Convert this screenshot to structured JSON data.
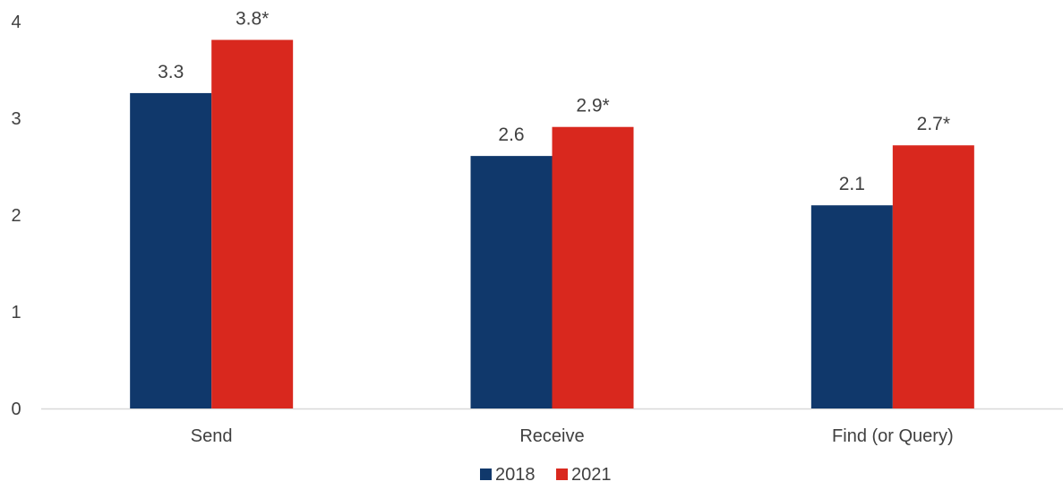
{
  "chart_data": {
    "type": "bar",
    "title": "",
    "xlabel": "",
    "ylabel": "",
    "categories": [
      "Send",
      "Receive",
      "Find (or Query)"
    ],
    "series": [
      {
        "name": "2018",
        "color": "#10386B",
        "values": [
          3.26,
          2.61,
          2.1
        ],
        "labels": [
          "3.3",
          "2.6",
          "2.1"
        ]
      },
      {
        "name": "2021",
        "color": "#D9281E",
        "values": [
          3.81,
          2.91,
          2.72
        ],
        "labels": [
          "3.8*",
          "2.9*",
          "2.7*"
        ]
      }
    ],
    "ylim": [
      0,
      4
    ],
    "yticks": [
      "0",
      "1",
      "2",
      "3",
      "4"
    ],
    "grid": false,
    "legend_position": "bottom-center",
    "axis_color": "#D9D9D9",
    "text_color": "#404040"
  }
}
